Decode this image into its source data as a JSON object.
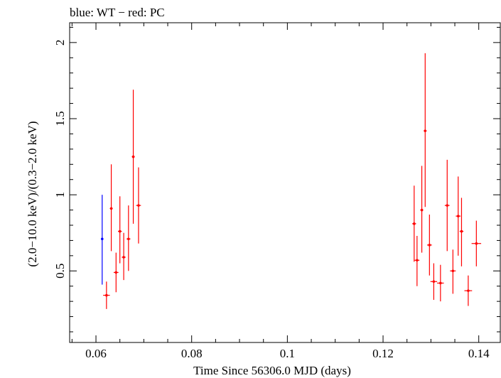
{
  "chart_data": {
    "type": "scatter",
    "title": "blue: WT − red: PC",
    "xlabel": "Time Since 56306.0 MJD (days)",
    "ylabel": "(2.0−10.0 keV)/(0.3−2.0 keV)",
    "xlim": [
      0.0545,
      0.1445
    ],
    "ylim": [
      0.03,
      2.13
    ],
    "x_ticks": [
      0.06,
      0.08,
      0.1,
      0.12,
      0.14
    ],
    "x_tick_labels": [
      "0.06",
      "0.08",
      "0.1",
      "0.12",
      "0.14"
    ],
    "y_ticks": [
      0.5,
      1.0,
      1.5,
      2.0
    ],
    "y_tick_labels": [
      "0.5",
      "1",
      "1.5",
      "2"
    ],
    "grid": false,
    "series": [
      {
        "color": "#0000ff",
        "points": [
          {
            "x": 0.0613,
            "y": 0.71,
            "xerr": 0.0001,
            "ylo": 0.41,
            "yhi": 1.0
          }
        ]
      },
      {
        "color": "#ff0000",
        "points": [
          {
            "x": 0.0622,
            "y": 0.34,
            "xerr": 0.0007,
            "ylo": 0.25,
            "yhi": 0.43
          },
          {
            "x": 0.0632,
            "y": 0.91,
            "xerr": 0.0003,
            "ylo": 0.63,
            "yhi": 1.2
          },
          {
            "x": 0.0642,
            "y": 0.49,
            "xerr": 0.0005,
            "ylo": 0.36,
            "yhi": 0.62
          },
          {
            "x": 0.065,
            "y": 0.76,
            "xerr": 0.0004,
            "ylo": 0.55,
            "yhi": 0.99
          },
          {
            "x": 0.0658,
            "y": 0.59,
            "xerr": 0.0004,
            "ylo": 0.44,
            "yhi": 0.75
          },
          {
            "x": 0.0668,
            "y": 0.71,
            "xerr": 0.0004,
            "ylo": 0.5,
            "yhi": 0.93
          },
          {
            "x": 0.0678,
            "y": 1.25,
            "xerr": 0.0003,
            "ylo": 0.81,
            "yhi": 1.69
          },
          {
            "x": 0.0689,
            "y": 0.93,
            "xerr": 0.0005,
            "ylo": 0.68,
            "yhi": 1.18
          },
          {
            "x": 0.1265,
            "y": 0.81,
            "xerr": 0.0004,
            "ylo": 0.56,
            "yhi": 1.06
          },
          {
            "x": 0.1271,
            "y": 0.57,
            "xerr": 0.0005,
            "ylo": 0.4,
            "yhi": 0.73
          },
          {
            "x": 0.1281,
            "y": 0.9,
            "xerr": 0.0003,
            "ylo": 0.62,
            "yhi": 1.19
          },
          {
            "x": 0.1288,
            "y": 1.42,
            "xerr": 0.0003,
            "ylo": 0.92,
            "yhi": 1.93
          },
          {
            "x": 0.1297,
            "y": 0.67,
            "xerr": 0.0005,
            "ylo": 0.47,
            "yhi": 0.87
          },
          {
            "x": 0.1306,
            "y": 0.43,
            "xerr": 0.0007,
            "ylo": 0.31,
            "yhi": 0.55
          },
          {
            "x": 0.132,
            "y": 0.42,
            "xerr": 0.0007,
            "ylo": 0.3,
            "yhi": 0.54
          },
          {
            "x": 0.1334,
            "y": 0.93,
            "xerr": 0.0005,
            "ylo": 0.63,
            "yhi": 1.23
          },
          {
            "x": 0.1346,
            "y": 0.5,
            "xerr": 0.0006,
            "ylo": 0.35,
            "yhi": 0.64
          },
          {
            "x": 0.1357,
            "y": 0.86,
            "xerr": 0.0005,
            "ylo": 0.6,
            "yhi": 1.12
          },
          {
            "x": 0.1364,
            "y": 0.76,
            "xerr": 0.0004,
            "ylo": 0.53,
            "yhi": 0.98
          },
          {
            "x": 0.1378,
            "y": 0.37,
            "xerr": 0.0008,
            "ylo": 0.27,
            "yhi": 0.47
          },
          {
            "x": 0.1395,
            "y": 0.68,
            "xerr": 0.001,
            "ylo": 0.53,
            "yhi": 0.83
          }
        ]
      }
    ]
  }
}
